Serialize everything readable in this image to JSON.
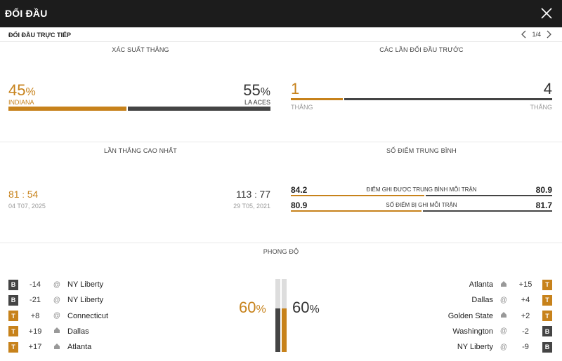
{
  "header": {
    "title": "ĐỐI ĐẦU",
    "close_icon": "close-icon"
  },
  "subheader": {
    "label": "ĐỐI ĐẦU TRỰC TIẾP",
    "pager": "1/4"
  },
  "win_prob": {
    "title": "XÁC SUẤT THẮNG",
    "left": {
      "value": "45",
      "unit": "%",
      "team": "INDIANA"
    },
    "right": {
      "value": "55",
      "unit": "%",
      "team": "LA ACES"
    },
    "left_fraction": 0.45
  },
  "previous": {
    "title": "CÁC LẦN ĐỐI ĐẦU TRƯỚC",
    "left": {
      "value": "1",
      "label": "THẮNG"
    },
    "right": {
      "value": "4",
      "label": "THẮNG"
    },
    "left_fraction": 0.2
  },
  "biggest_win": {
    "title": "LẦN THẮNG CAO NHẤT",
    "left": {
      "score_a": "81",
      "sep": ":",
      "score_b": "54",
      "date": "04 T07, 2025"
    },
    "right": {
      "score_a": "113",
      "sep": ":",
      "score_b": "77",
      "date": "29 T05, 2021"
    }
  },
  "avg_points": {
    "title": "SỐ ĐIỂM TRUNG BÌNH",
    "rows": [
      {
        "left": "84.2",
        "label": "ĐIỂM GHI ĐƯỢC TRUNG BÌNH MỖI TRẬN",
        "right": "80.9",
        "left_fraction": 0.51
      },
      {
        "left": "80.9",
        "label": "SỐ ĐIỂM BỊ GHI MỖI TRẬN",
        "right": "81.7",
        "left_fraction": 0.5
      }
    ]
  },
  "form": {
    "title": "PHONG ĐỘ",
    "left_pct": {
      "value": "60",
      "unit": "%"
    },
    "right_pct": {
      "value": "60",
      "unit": "%"
    },
    "left_fraction": 0.6,
    "right_fraction": 0.6,
    "left_games": [
      {
        "result": "B",
        "score": "-14",
        "loc": "@",
        "team": "NY Liberty"
      },
      {
        "result": "B",
        "score": "-21",
        "loc": "@",
        "team": "NY Liberty"
      },
      {
        "result": "T",
        "score": "+8",
        "loc": "@",
        "team": "Connecticut"
      },
      {
        "result": "T",
        "score": "+19",
        "loc": "home",
        "team": "Dallas"
      },
      {
        "result": "T",
        "score": "+17",
        "loc": "home",
        "team": "Atlanta"
      }
    ],
    "right_games": [
      {
        "result": "T",
        "score": "+15",
        "loc": "home",
        "team": "Atlanta"
      },
      {
        "result": "T",
        "score": "+4",
        "loc": "@",
        "team": "Dallas"
      },
      {
        "result": "T",
        "score": "+2",
        "loc": "home",
        "team": "Golden State"
      },
      {
        "result": "B",
        "score": "-2",
        "loc": "@",
        "team": "Washington"
      },
      {
        "result": "B",
        "score": "-9",
        "loc": "@",
        "team": "NY Liberty"
      }
    ]
  },
  "colors": {
    "accent": "#c7821b",
    "dark": "#444444",
    "topbar": "#1c1c1c"
  }
}
